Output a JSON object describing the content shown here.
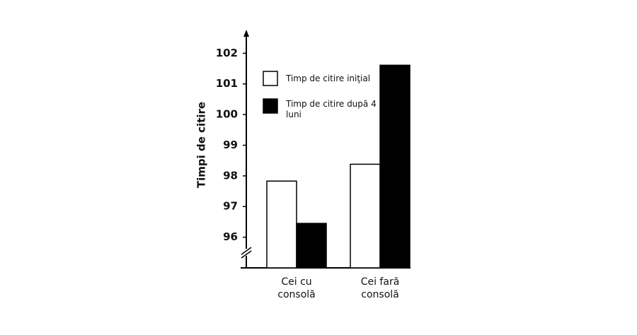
{
  "chart_data": {
    "type": "bar",
    "y_label": "Timpi de citire",
    "categories": [
      "Cei cu consolă",
      "Cei fară consolă"
    ],
    "series": [
      {
        "name": "Timp de citire iniţial",
        "color": "#ffffff",
        "values": [
          97.83,
          98.38
        ]
      },
      {
        "name": "Timp de citire după 4 luni",
        "color": "#000000",
        "values": [
          96.45,
          101.61
        ]
      }
    ],
    "ylim": [
      95,
      102.7
    ],
    "yticks": [
      96,
      97,
      98,
      99,
      100,
      101,
      102
    ]
  }
}
